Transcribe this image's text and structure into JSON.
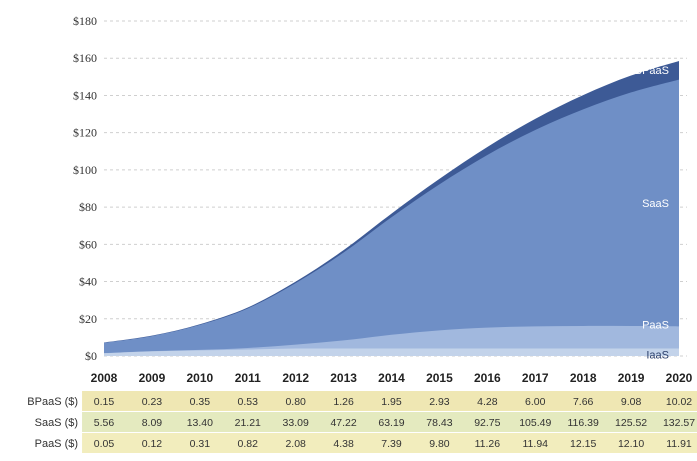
{
  "chart_data": {
    "type": "area",
    "stacked": true,
    "title": "",
    "xlabel": "",
    "ylabel": "",
    "ylim": [
      0,
      180
    ],
    "yticks": [
      "$180",
      "$160",
      "$140",
      "$120",
      "$100",
      "$80",
      "$60",
      "$40",
      "$20",
      "$0"
    ],
    "ytick_values": [
      180,
      160,
      140,
      120,
      100,
      80,
      60,
      40,
      20,
      0
    ],
    "grid": true,
    "categories": [
      "2008",
      "2009",
      "2010",
      "2011",
      "2012",
      "2013",
      "2014",
      "2015",
      "2016",
      "2017",
      "2018",
      "2019",
      "2020"
    ],
    "series": [
      {
        "name": "IaaS",
        "values": [
          1.5,
          2.5,
          3.0,
          3.5,
          4.0,
          4.0,
          4.0,
          4.0,
          4.0,
          4.0,
          4.0,
          4.0,
          4.0
        ],
        "color": "#c3d3ea"
      },
      {
        "name": "PaaS",
        "values": [
          0.05,
          0.12,
          0.31,
          0.82,
          2.08,
          4.38,
          7.39,
          9.8,
          11.26,
          11.94,
          12.15,
          12.1,
          11.91
        ],
        "color": "#a1b8de"
      },
      {
        "name": "SaaS",
        "values": [
          5.56,
          8.09,
          13.4,
          21.21,
          33.09,
          47.22,
          63.19,
          78.43,
          92.75,
          105.49,
          116.39,
          125.52,
          132.57
        ],
        "color": "#6f8fc6"
      },
      {
        "name": "BPaaS",
        "values": [
          0.15,
          0.23,
          0.35,
          0.53,
          0.8,
          1.26,
          1.95,
          2.93,
          4.28,
          6.0,
          7.66,
          9.08,
          10.02
        ],
        "color": "#3d5a96"
      }
    ],
    "table": {
      "rows": [
        {
          "label": "BPaaS ($)",
          "values": [
            "0.15",
            "0.23",
            "0.35",
            "0.53",
            "0.80",
            "1.26",
            "1.95",
            "2.93",
            "4.28",
            "6.00",
            "7.66",
            "9.08",
            "10.02"
          ]
        },
        {
          "label": "SaaS ($)",
          "values": [
            "5.56",
            "8.09",
            "13.40",
            "21.21",
            "33.09",
            "47.22",
            "63.19",
            "78.43",
            "92.75",
            "105.49",
            "116.39",
            "125.52",
            "132.57"
          ]
        },
        {
          "label": "PaaS ($)",
          "values": [
            "0.05",
            "0.12",
            "0.31",
            "0.82",
            "2.08",
            "4.38",
            "7.39",
            "9.80",
            "11.26",
            "11.94",
            "12.15",
            "12.10",
            "11.91"
          ]
        }
      ],
      "row_colors": [
        "#efe7b3",
        "#e4eabf",
        "#f2edbd"
      ]
    }
  }
}
